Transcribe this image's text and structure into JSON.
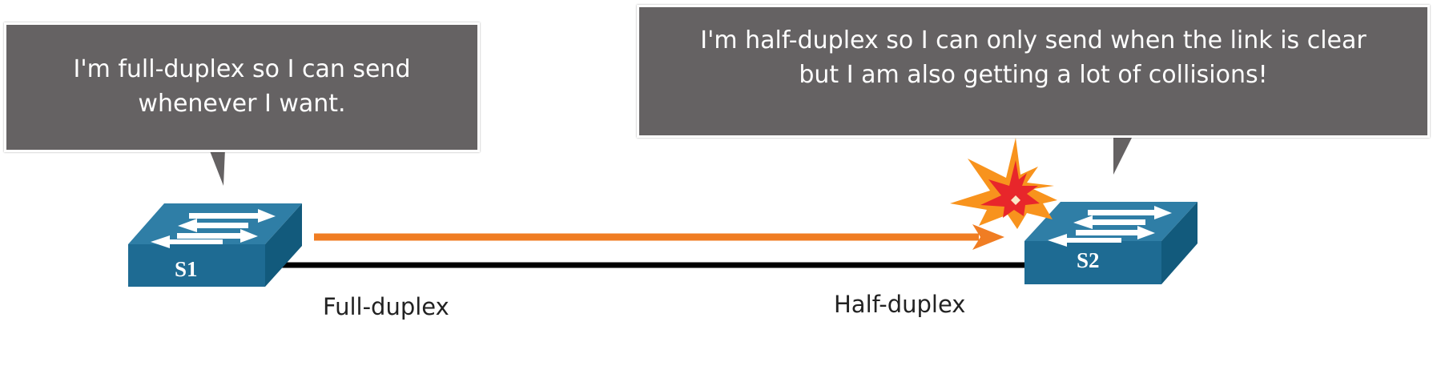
{
  "bubbles": {
    "s1": {
      "lines": [
        "I'm full-duplex so I can send",
        "whenever I want."
      ]
    },
    "s2": {
      "lines": [
        "I'm half-duplex so I can only send when the link is clear",
        "but I am also getting a lot of collisions!"
      ]
    }
  },
  "switches": {
    "s1": {
      "label": "S1"
    },
    "s2": {
      "label": "S2"
    }
  },
  "links": {
    "s1_label": "Full-duplex",
    "s2_label": "Half-duplex"
  },
  "icons": {
    "switch": "network-switch-icon",
    "collision": "collision-burst-icon",
    "arrow": "data-flow-arrow"
  },
  "colors": {
    "bubble": "#656263",
    "switch_top": "#2f7ea6",
    "switch_front": "#1e6b93",
    "switch_side": "#125a7c",
    "cable": "#000000",
    "traffic_arrow": "#f07d23",
    "collision_outer": "#f8931d",
    "collision_inner": "#e8262b"
  }
}
